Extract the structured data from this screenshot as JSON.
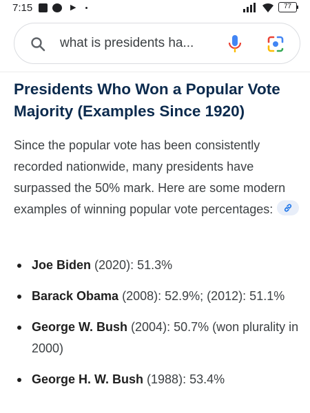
{
  "status_bar": {
    "time": "7:15",
    "battery": "77"
  },
  "search": {
    "query": "what is presidents ha..."
  },
  "answer": {
    "heading": "Presidents Who Won a Popular Vote Majority (Examples Since 1920)",
    "intro": "Since the popular vote has been consistently recorded nationwide, many presidents have surpassed the 50% mark. Here are some modern examples of winning popular vote percentages:",
    "items": [
      {
        "name": "Joe Biden",
        "detail": " (2020): 51.3%"
      },
      {
        "name": "Barack Obama",
        "detail": " (2008): 52.9%; (2012): 51.1%"
      },
      {
        "name": "George W. Bush",
        "detail": " (2004): 50.7% (won plurality in 2000)"
      },
      {
        "name": "George H. W. Bush",
        "detail": " (1988): 53.4%"
      }
    ]
  },
  "icons": {
    "search": "search-icon",
    "mic": "mic-icon",
    "lens": "lens-icon",
    "link": "link-icon"
  },
  "colors": {
    "heading": "#0b2a4d",
    "link_chip": "#e8eef9",
    "google_blue": "#4285f4",
    "google_red": "#ea4335",
    "google_yellow": "#fbbc04",
    "google_green": "#34a853"
  }
}
